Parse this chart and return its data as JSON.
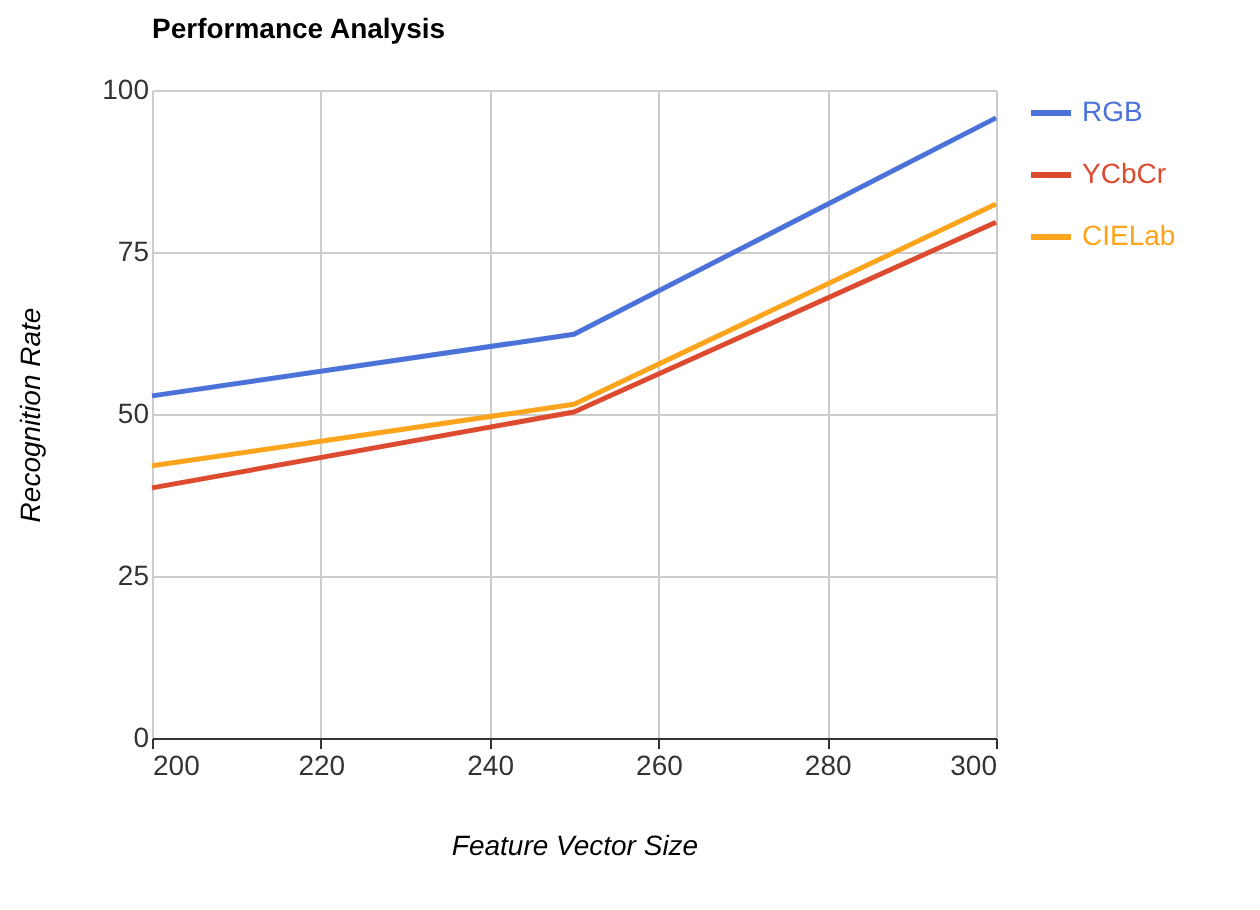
{
  "chart_data": {
    "type": "line",
    "title": "Performance Analysis",
    "xlabel": "Feature Vector Size",
    "ylabel": "Recognition Rate",
    "x": [
      200,
      250,
      300
    ],
    "series": [
      {
        "name": "RGB",
        "color": "#4a72d9",
        "values": [
          52.8,
          62.3,
          95.7
        ]
      },
      {
        "name": "YCbCr",
        "color": "#dc4b2f",
        "values": [
          38.6,
          50.3,
          79.6
        ]
      },
      {
        "name": "CIELab",
        "color": "#fca51c",
        "values": [
          42,
          51.5,
          82.4
        ]
      }
    ],
    "xlim": [
      200,
      300
    ],
    "xticks": [
      200,
      220,
      240,
      260,
      280,
      300
    ],
    "ylim": [
      0,
      100
    ],
    "yticks": [
      0,
      25,
      50,
      75,
      100
    ],
    "grid": true,
    "legend": "right",
    "marker": "none",
    "line_style": "solid"
  }
}
